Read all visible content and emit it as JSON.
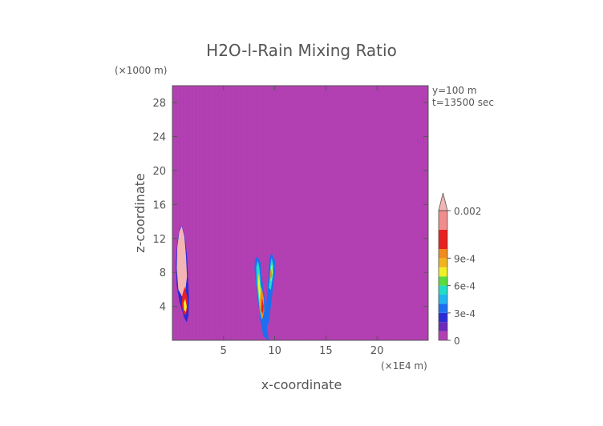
{
  "chart_data": {
    "type": "heatmap",
    "title": "H2O-l-Rain Mixing Ratio",
    "xlabel": "x-coordinate",
    "ylabel": "z-coordinate",
    "x_unit": "(×1E4 m)",
    "y_unit": "(×1000 m)",
    "annotations": [
      "y=100 m",
      "t=13500 sec"
    ],
    "xlim": [
      0,
      25
    ],
    "ylim": [
      0,
      30
    ],
    "x_ticks": [
      5,
      10,
      15,
      20
    ],
    "y_ticks": [
      4,
      8,
      12,
      16,
      20,
      24,
      28
    ],
    "grid": false,
    "background_color": "#b340b3",
    "colorbar": {
      "placement": "right",
      "tick_values": [
        0,
        0.0003,
        0.0006,
        0.0009,
        0.002
      ],
      "tick_labels": [
        "0",
        "3e-4",
        "6e-4",
        "9e-4",
        "0.002"
      ],
      "extend": "max",
      "bands": [
        {
          "from": 0,
          "to": 0.0001,
          "color": "#b340b3"
        },
        {
          "from": 0.0001,
          "to": 0.0002,
          "color": "#6b2ab8"
        },
        {
          "from": 0.0002,
          "to": 0.0003,
          "color": "#2a2ad6"
        },
        {
          "from": 0.0003,
          "to": 0.0004,
          "color": "#1e6ef0"
        },
        {
          "from": 0.0004,
          "to": 0.0005,
          "color": "#22b4f0"
        },
        {
          "from": 0.0005,
          "to": 0.0006,
          "color": "#22dcc8"
        },
        {
          "from": 0.0006,
          "to": 0.0007,
          "color": "#5adc3c"
        },
        {
          "from": 0.0007,
          "to": 0.0008,
          "color": "#f0f028"
        },
        {
          "from": 0.0008,
          "to": 0.0009,
          "color": "#f0b41e"
        },
        {
          "from": 0.0009,
          "to": 0.001,
          "color": "#f08c1e"
        },
        {
          "from": 0.001,
          "to": 0.0015,
          "color": "#e82020"
        },
        {
          "from": 0.0015,
          "to": 0.002,
          "color": "#f08c8c"
        },
        {
          "from": 0.002,
          "to": 0.0022,
          "color": "#f5b4b4"
        }
      ]
    },
    "regions": [
      {
        "name": "left-cell-outer",
        "color": "#2a2ad6",
        "points": [
          [
            0.9,
            13.5
          ],
          [
            1.2,
            12.2
          ],
          [
            1.4,
            10.0
          ],
          [
            1.5,
            7.5
          ],
          [
            1.6,
            5.0
          ],
          [
            1.55,
            3.0
          ],
          [
            1.4,
            2.2
          ],
          [
            1.2,
            2.6
          ],
          [
            1.0,
            3.4
          ],
          [
            0.7,
            4.6
          ],
          [
            0.45,
            6.5
          ],
          [
            0.35,
            9.0
          ],
          [
            0.5,
            11.5
          ],
          [
            0.7,
            13.0
          ]
        ]
      },
      {
        "name": "left-cell-pink",
        "color": "#f5b4b4",
        "points": [
          [
            0.9,
            13.4
          ],
          [
            1.15,
            12.2
          ],
          [
            1.3,
            10.0
          ],
          [
            1.4,
            7.5
          ],
          [
            1.2,
            5.5
          ],
          [
            0.95,
            5.2
          ],
          [
            0.6,
            6.0
          ],
          [
            0.45,
            8.5
          ],
          [
            0.5,
            11.0
          ],
          [
            0.7,
            12.8
          ]
        ]
      },
      {
        "name": "left-cell-red",
        "color": "#e82020",
        "points": [
          [
            1.2,
            6.2
          ],
          [
            1.45,
            5.0
          ],
          [
            1.45,
            3.8
          ],
          [
            1.3,
            3.0
          ],
          [
            1.1,
            3.2
          ],
          [
            0.95,
            4.2
          ],
          [
            1.0,
            5.4
          ]
        ]
      },
      {
        "name": "left-cell-yellow",
        "color": "#f0f028",
        "points": [
          [
            1.25,
            4.8
          ],
          [
            1.38,
            4.0
          ],
          [
            1.3,
            3.4
          ],
          [
            1.15,
            3.6
          ],
          [
            1.12,
            4.4
          ]
        ]
      },
      {
        "name": "mid-outer-1",
        "color": "#1e6ef0",
        "points": [
          [
            8.3,
            9.8
          ],
          [
            8.6,
            9.2
          ],
          [
            8.7,
            7.5
          ],
          [
            8.9,
            6.0
          ],
          [
            9.1,
            4.0
          ],
          [
            9.2,
            2.0
          ],
          [
            9.4,
            0.0
          ],
          [
            8.9,
            0.5
          ],
          [
            8.6,
            2.5
          ],
          [
            8.4,
            4.5
          ],
          [
            8.2,
            6.5
          ],
          [
            8.05,
            8.5
          ],
          [
            8.1,
            9.6
          ]
        ]
      },
      {
        "name": "mid-outer-2",
        "color": "#1e6ef0",
        "points": [
          [
            9.7,
            10.2
          ],
          [
            10.0,
            9.4
          ],
          [
            10.0,
            7.8
          ],
          [
            9.8,
            6.0
          ],
          [
            9.6,
            4.0
          ],
          [
            9.4,
            2.0
          ],
          [
            9.1,
            1.8
          ],
          [
            9.15,
            3.8
          ],
          [
            9.3,
            5.5
          ],
          [
            9.4,
            7.5
          ],
          [
            9.45,
            9.0
          ],
          [
            9.55,
            9.9
          ]
        ]
      },
      {
        "name": "mid-cyan-1",
        "color": "#22dcc8",
        "points": [
          [
            8.35,
            9.3
          ],
          [
            8.5,
            8.4
          ],
          [
            8.6,
            6.8
          ],
          [
            8.75,
            5.2
          ],
          [
            8.85,
            3.5
          ],
          [
            8.75,
            2.5
          ],
          [
            8.55,
            3.5
          ],
          [
            8.4,
            5.2
          ],
          [
            8.25,
            7.0
          ],
          [
            8.22,
            8.6
          ]
        ]
      },
      {
        "name": "mid-cyan-2",
        "color": "#22dcc8",
        "points": [
          [
            9.7,
            9.6
          ],
          [
            9.85,
            8.8
          ],
          [
            9.8,
            7.5
          ],
          [
            9.6,
            6.0
          ],
          [
            9.45,
            6.2
          ],
          [
            9.55,
            7.6
          ],
          [
            9.6,
            8.8
          ]
        ]
      },
      {
        "name": "mid-yellow-1",
        "color": "#f0f028",
        "points": [
          [
            8.45,
            7.8
          ],
          [
            8.55,
            6.5
          ],
          [
            8.7,
            5.0
          ],
          [
            8.75,
            4.0
          ],
          [
            8.6,
            3.9
          ],
          [
            8.5,
            5.0
          ],
          [
            8.38,
            6.6
          ]
        ]
      },
      {
        "name": "mid-yellow-2",
        "color": "#f0f028",
        "points": [
          [
            9.72,
            8.9
          ],
          [
            9.78,
            8.0
          ],
          [
            9.65,
            7.0
          ],
          [
            9.58,
            7.8
          ]
        ]
      },
      {
        "name": "mid-orange-1",
        "color": "#f08c1e",
        "points": [
          [
            8.7,
            6.2
          ],
          [
            8.9,
            5.0
          ],
          [
            8.95,
            3.5
          ],
          [
            8.8,
            2.6
          ],
          [
            8.62,
            3.4
          ],
          [
            8.58,
            4.8
          ]
        ]
      },
      {
        "name": "mid-orange-2",
        "color": "#f08c1e",
        "points": [
          [
            9.65,
            8.4
          ],
          [
            9.72,
            7.6
          ],
          [
            9.62,
            7.2
          ],
          [
            9.58,
            7.9
          ]
        ]
      },
      {
        "name": "mid-red",
        "color": "#e82020",
        "points": [
          [
            8.78,
            4.8
          ],
          [
            8.9,
            4.0
          ],
          [
            8.85,
            3.2
          ],
          [
            8.7,
            3.5
          ]
        ]
      }
    ]
  }
}
